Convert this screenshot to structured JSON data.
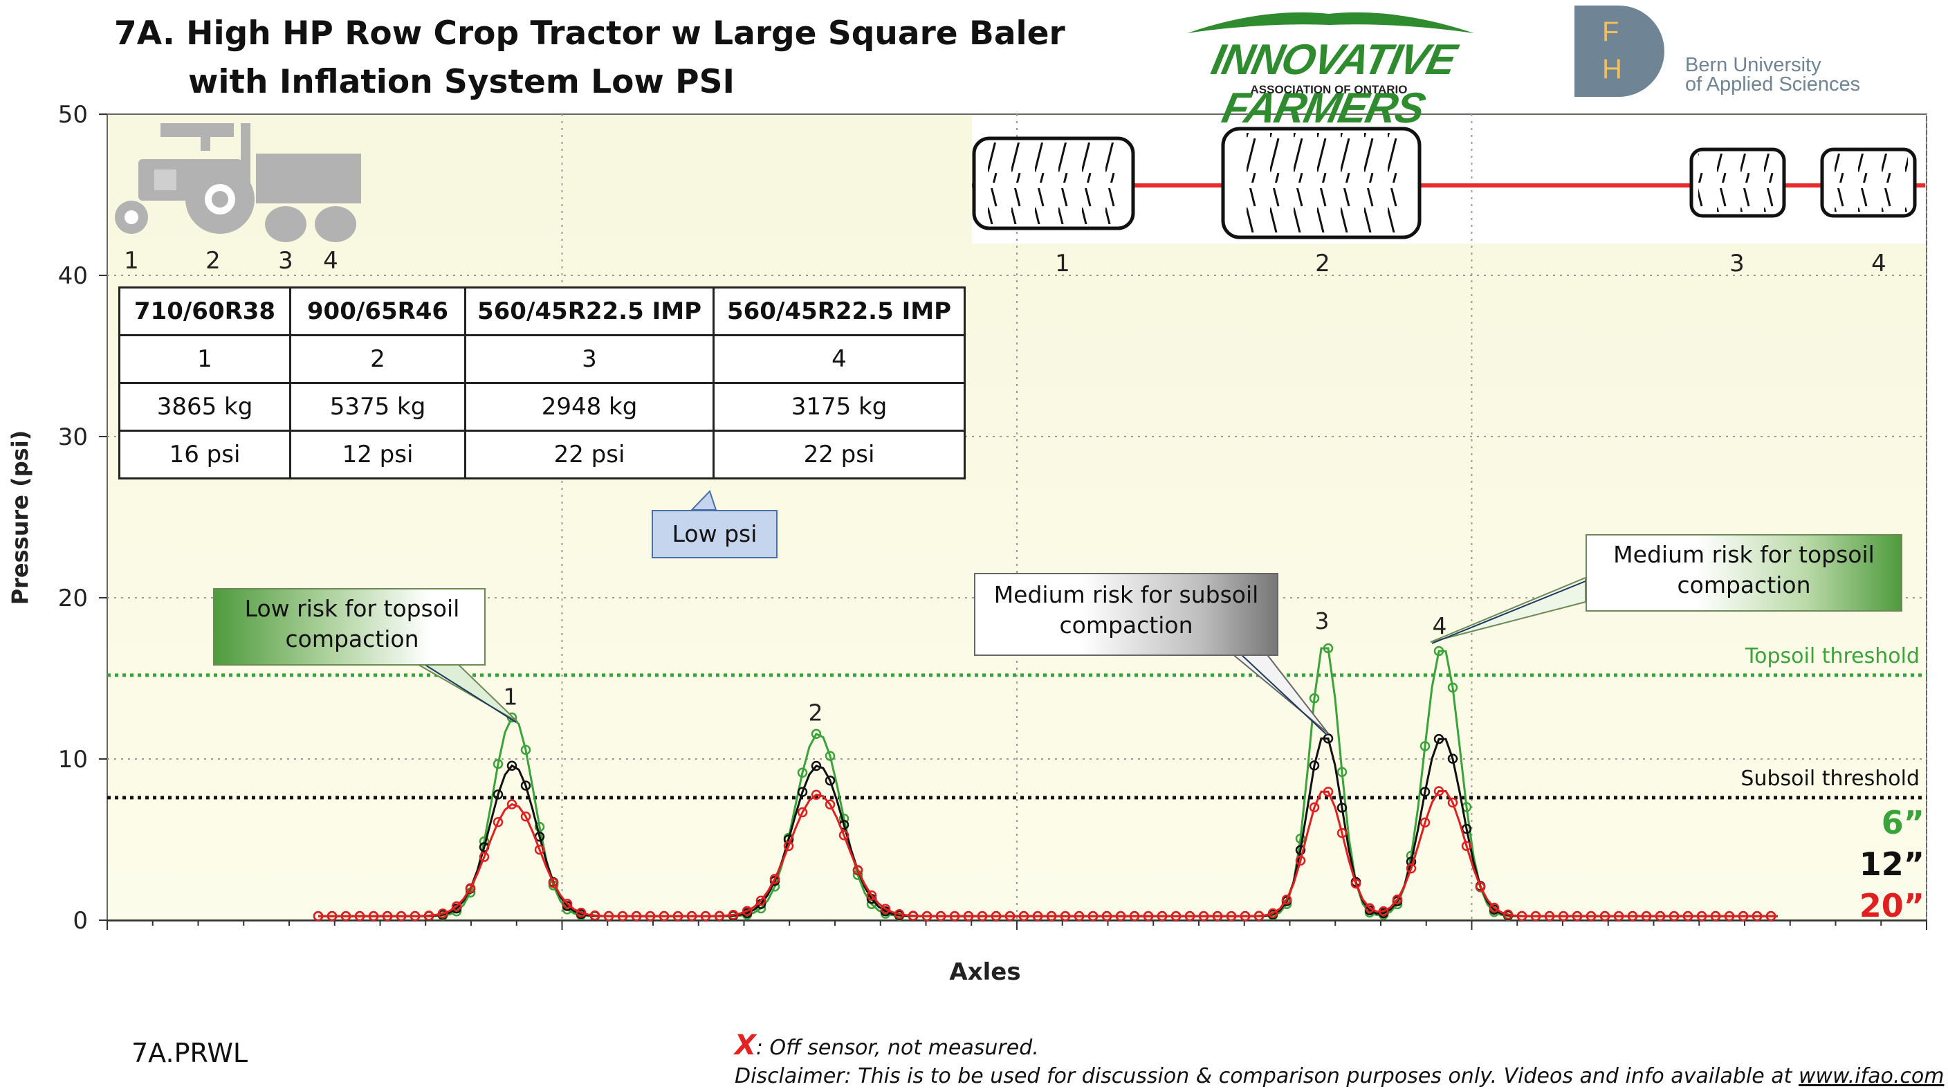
{
  "title_line1": "7A. High HP Row Crop Tractor w Large Square Baler",
  "title_line2": "with Inflation System Low PSI",
  "logos": {
    "ifao_main": "INNOVATIVE FARMERS",
    "ifao_sub": "ASSOCIATION OF ONTARIO",
    "fh_f": "F",
    "fh_h": "H",
    "bern_line1": "Bern University",
    "bern_line2": "of Applied Sciences"
  },
  "table": {
    "headers": [
      "710/60R38",
      "900/65R46",
      "560/45R22.5 IMP",
      "560/45R22.5 IMP"
    ],
    "axles": [
      "1",
      "2",
      "3",
      "4"
    ],
    "loads": [
      "3865 kg",
      "5375 kg",
      "2948 kg",
      "3175 kg"
    ],
    "pressures": [
      "16 psi",
      "12 psi",
      "22 psi",
      "22 psi"
    ]
  },
  "icon_labels": [
    "1",
    "2",
    "3",
    "4"
  ],
  "tire_labels": [
    "1",
    "2",
    "3",
    "4"
  ],
  "callouts": {
    "low_psi": "Low psi",
    "low_risk": "Low risk for topsoil compaction",
    "medium_subsoil": "Medium risk for subsoil compaction",
    "medium_topsoil": "Medium risk for topsoil compaction"
  },
  "footer": {
    "id": "7A.PRWL",
    "x_mark": "X",
    "x_note": ": Off sensor, not measured.",
    "disclaimer": "Disclaimer: This is to be used for discussion & comparison purposes only. Videos and info available at ",
    "url": "www.ifao.com"
  },
  "chart_data": {
    "type": "line",
    "ylabel": "Pressure (psi)",
    "xlabel": "Axles",
    "ylim": [
      0,
      50
    ],
    "yticks": [
      0,
      10,
      20,
      30,
      40,
      50
    ],
    "grid": true,
    "thresholds": [
      {
        "name": "Topsoil threshold",
        "value": 15.2,
        "color": "#3aa33a"
      },
      {
        "name": "Subsoil threshold",
        "value": 7.6,
        "color": "#111111"
      }
    ],
    "peak_labels": [
      {
        "label": "1",
        "value": 12.6
      },
      {
        "label": "2",
        "value": 11.6
      },
      {
        "label": "3",
        "value": 17.3
      },
      {
        "label": "4",
        "value": 17.0
      }
    ],
    "series": [
      {
        "name": "6”",
        "color": "#3aa33a",
        "peaks": [
          12.6,
          11.6,
          17.3,
          17.0
        ]
      },
      {
        "name": "12”",
        "color": "#111111",
        "peaks": [
          9.6,
          9.6,
          11.5,
          11.4
        ]
      },
      {
        "name": "20”",
        "color": "#e02020",
        "peaks": [
          7.2,
          7.8,
          8.1,
          8.1
        ]
      }
    ]
  }
}
